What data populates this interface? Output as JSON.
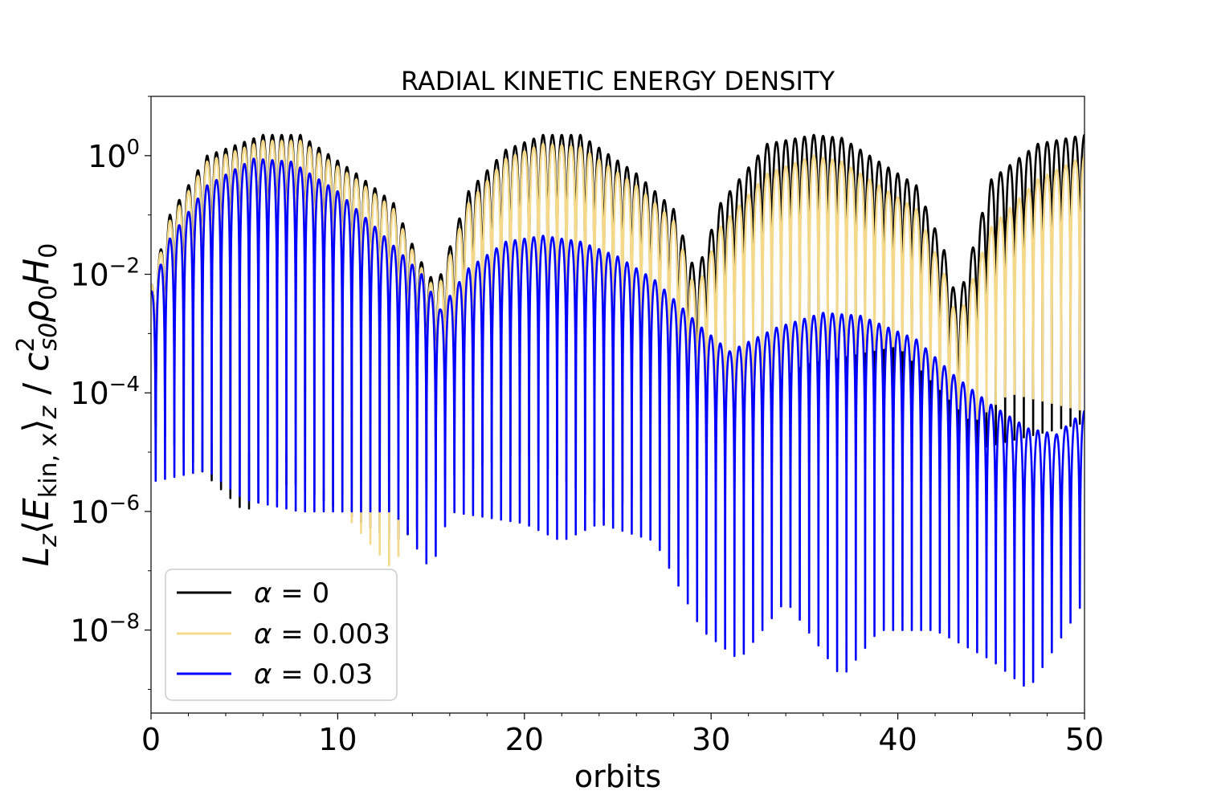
{
  "chart_data": {
    "type": "line",
    "title": "RADIAL KINETIC ENERGY DENSITY",
    "xlabel": "orbits",
    "ylabel": {
      "prefix": "L",
      "sub1": "z",
      "angle_open": "⟨",
      "E": "E",
      "sub2": "kin, x",
      "angle_close": "⟩",
      "sub3": "z",
      "slash": " / ",
      "c": "c",
      "c_sup": "2",
      "c_sub": "s0",
      "rho": "ρ",
      "rho_sub": "0",
      "H": "H",
      "H_sub": "0"
    },
    "xlim": [
      0,
      50
    ],
    "ylim_log10": [
      -9.4,
      1.0
    ],
    "x_ticks": [
      "0",
      "10",
      "20",
      "30",
      "40",
      "50"
    ],
    "y_ticks": [
      {
        "base": "10",
        "exp": "0",
        "value": 0
      },
      {
        "base": "10",
        "exp": "−2",
        "value": -2
      },
      {
        "base": "10",
        "exp": "−4",
        "value": -4
      },
      {
        "base": "10",
        "exp": "−6",
        "value": -6
      },
      {
        "base": "10",
        "exp": "−8",
        "value": -8
      }
    ],
    "legend_position": "lower-left",
    "series": [
      {
        "name": "α = 0",
        "alpha_label": "α",
        "eq_value": " = 0",
        "color": "#000000",
        "oscillation_period_orbits": 0.5,
        "envelope_log10": [
          [
            0.0,
            -2.2
          ],
          [
            1.0,
            -1.0
          ],
          [
            3.0,
            0.0
          ],
          [
            6.0,
            0.35
          ],
          [
            8.0,
            0.35
          ],
          [
            11.0,
            -0.3
          ],
          [
            13.0,
            -0.8
          ],
          [
            14.3,
            -1.7
          ],
          [
            15.3,
            -2.2
          ],
          [
            17.0,
            -0.6
          ],
          [
            19.0,
            0.1
          ],
          [
            21.0,
            0.35
          ],
          [
            23.0,
            0.35
          ],
          [
            26.0,
            -0.3
          ],
          [
            28.0,
            -0.9
          ],
          [
            29.2,
            -2.0
          ],
          [
            30.5,
            -0.8
          ],
          [
            33.0,
            0.2
          ],
          [
            35.5,
            0.35
          ],
          [
            37.0,
            0.3
          ],
          [
            41.0,
            -0.5
          ],
          [
            42.5,
            -1.6
          ],
          [
            43.2,
            -2.5
          ],
          [
            45.0,
            -0.4
          ],
          [
            47.5,
            0.2
          ],
          [
            50.0,
            0.35
          ]
        ],
        "trough_log10": [
          [
            0.0,
            -4.5
          ],
          [
            5.0,
            -6.0
          ],
          [
            7.5,
            -5.5
          ],
          [
            13.0,
            -6.5
          ],
          [
            14.3,
            -6.3
          ],
          [
            15.0,
            -5.5
          ],
          [
            20.0,
            -5.0
          ],
          [
            24.5,
            -6.0
          ],
          [
            27.0,
            -5.5
          ],
          [
            28.8,
            -6.8
          ],
          [
            30.0,
            -5.0
          ],
          [
            35.0,
            -4.0
          ],
          [
            40.0,
            -4.0
          ],
          [
            42.5,
            -6.0
          ],
          [
            43.5,
            -5.0
          ],
          [
            50.0,
            -4.5
          ]
        ]
      },
      {
        "name": "α = 0.003",
        "alpha_label": "α",
        "eq_value": " = 0.003",
        "color": "#f4d98a",
        "oscillation_period_orbits": 0.5,
        "envelope_log10": [
          [
            0.0,
            -2.2
          ],
          [
            1.0,
            -1.1
          ],
          [
            3.0,
            -0.1
          ],
          [
            6.0,
            0.25
          ],
          [
            8.0,
            0.25
          ],
          [
            11.0,
            -0.4
          ],
          [
            13.0,
            -0.9
          ],
          [
            14.3,
            -1.8
          ],
          [
            15.3,
            -2.3
          ],
          [
            17.0,
            -0.8
          ],
          [
            19.0,
            -0.05
          ],
          [
            21.0,
            0.2
          ],
          [
            23.0,
            0.15
          ],
          [
            26.0,
            -0.5
          ],
          [
            28.0,
            -1.1
          ],
          [
            29.2,
            -2.3
          ],
          [
            30.5,
            -1.2
          ],
          [
            33.0,
            -0.3
          ],
          [
            35.5,
            0.0
          ],
          [
            37.0,
            -0.1
          ],
          [
            41.0,
            -0.9
          ],
          [
            42.5,
            -2.0
          ],
          [
            43.2,
            -2.8
          ],
          [
            45.0,
            -1.2
          ],
          [
            47.5,
            -0.4
          ],
          [
            50.0,
            0.0
          ]
        ],
        "trough_log10": [
          [
            0.0,
            -4.5
          ],
          [
            4.5,
            -5.0
          ],
          [
            7.5,
            -5.0
          ],
          [
            13.0,
            -7.0
          ],
          [
            14.0,
            -6.0
          ],
          [
            16.0,
            -5.0
          ],
          [
            20.0,
            -4.8
          ],
          [
            24.0,
            -5.5
          ],
          [
            28.8,
            -7.2
          ],
          [
            30.0,
            -4.5
          ],
          [
            35.0,
            -3.5
          ],
          [
            40.0,
            -3.2
          ],
          [
            44.0,
            -4.5
          ],
          [
            46.0,
            -4.0
          ],
          [
            50.0,
            -4.3
          ]
        ]
      },
      {
        "name": "α = 0.03",
        "alpha_label": "α",
        "eq_value": " = 0.03",
        "color": "#0000ff",
        "oscillation_period_orbits": 0.5,
        "envelope_log10": [
          [
            0.0,
            -2.3
          ],
          [
            1.0,
            -1.4
          ],
          [
            3.0,
            -0.5
          ],
          [
            5.5,
            -0.05
          ],
          [
            7.5,
            -0.1
          ],
          [
            10.0,
            -0.6
          ],
          [
            12.0,
            -1.2
          ],
          [
            14.5,
            -2.0
          ],
          [
            15.5,
            -2.6
          ],
          [
            17.0,
            -1.9
          ],
          [
            19.0,
            -1.45
          ],
          [
            21.0,
            -1.35
          ],
          [
            23.0,
            -1.45
          ],
          [
            25.0,
            -1.7
          ],
          [
            27.0,
            -2.1
          ],
          [
            29.5,
            -2.9
          ],
          [
            31.0,
            -3.3
          ],
          [
            33.5,
            -2.9
          ],
          [
            36.0,
            -2.65
          ],
          [
            38.0,
            -2.7
          ],
          [
            41.0,
            -3.1
          ],
          [
            43.0,
            -3.7
          ],
          [
            45.0,
            -4.2
          ],
          [
            47.0,
            -4.6
          ],
          [
            48.5,
            -4.7
          ],
          [
            50.0,
            -4.3
          ]
        ],
        "trough_log10": [
          [
            0.0,
            -5.5
          ],
          [
            3.0,
            -5.3
          ],
          [
            5.0,
            -5.8
          ],
          [
            8.0,
            -6.0
          ],
          [
            11.0,
            -6.0
          ],
          [
            13.0,
            -6.0
          ],
          [
            15.0,
            -7.0
          ],
          [
            16.0,
            -6.0
          ],
          [
            20.0,
            -6.2
          ],
          [
            22.0,
            -6.5
          ],
          [
            24.0,
            -6.2
          ],
          [
            27.0,
            -6.5
          ],
          [
            29.5,
            -8.0
          ],
          [
            31.5,
            -8.5
          ],
          [
            34.0,
            -7.5
          ],
          [
            37.0,
            -8.8
          ],
          [
            39.0,
            -8.0
          ],
          [
            42.0,
            -8.0
          ],
          [
            45.0,
            -8.5
          ],
          [
            47.0,
            -9.0
          ],
          [
            50.0,
            -7.5
          ]
        ]
      }
    ]
  }
}
